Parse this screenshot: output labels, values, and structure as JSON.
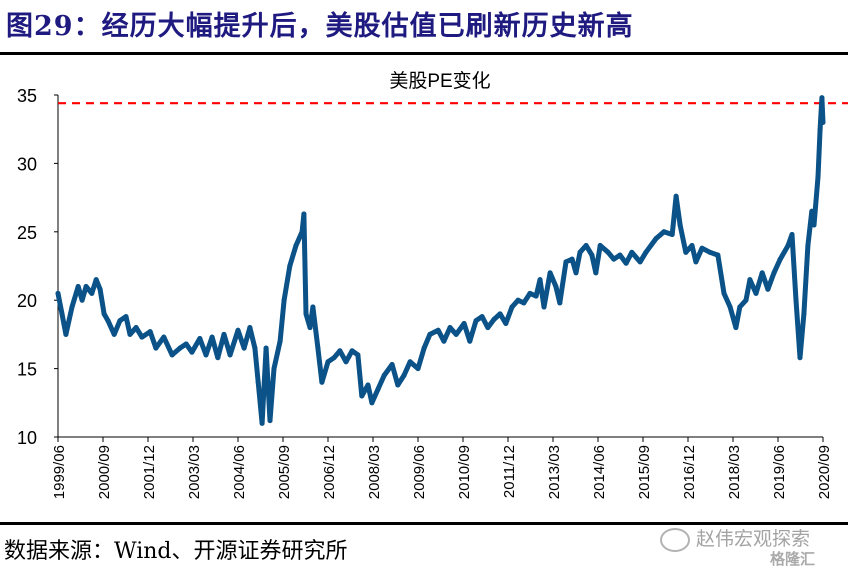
{
  "figure_title": "图29：经历大幅提升后，美股估值已刷新历史新高",
  "source": "数据来源：Wind、开源证券研究所",
  "watermark": {
    "account": "赵伟宏观探索",
    "platform": "格隆汇",
    "icon": "wechat-icon"
  },
  "colors": {
    "title": "#1f1a80",
    "line": "#0a5287",
    "reference": "#ff0000"
  },
  "chart_data": {
    "type": "line",
    "title": "美股PE变化",
    "xlabel": "",
    "ylabel": "",
    "ylim": [
      10,
      35
    ],
    "xlim": [
      1999.42,
      2020.67
    ],
    "yticks": [
      "10",
      "15",
      "20",
      "25",
      "30",
      "35"
    ],
    "xticks": [
      "1999/06",
      "2000/09",
      "2001/12",
      "2003/03",
      "2004/06",
      "2005/09",
      "2006/12",
      "2008/03",
      "2009/06",
      "2010/09",
      "2011/12",
      "2013/03",
      "2014/06",
      "2015/09",
      "2016/12",
      "2018/03",
      "2019/06",
      "2020/09"
    ],
    "grid": false,
    "reference_line": {
      "value": 34.4,
      "style": "dashed",
      "label": ""
    },
    "series": [
      {
        "name": "美股PE",
        "x": [
          1999.42,
          1999.53,
          1999.64,
          1999.81,
          1999.98,
          2000.09,
          2000.2,
          2000.36,
          2000.48,
          2000.59,
          2000.7,
          2000.81,
          2000.98,
          2001.14,
          2001.31,
          2001.42,
          2001.59,
          2001.75,
          2001.98,
          2002.14,
          2002.36,
          2002.59,
          2002.81,
          2002.98,
          2003.14,
          2003.36,
          2003.53,
          2003.7,
          2003.86,
          2004.03,
          2004.2,
          2004.42,
          2004.59,
          2004.75,
          2004.89,
          2004.98,
          2005.09,
          2005.2,
          2005.31,
          2005.42,
          2005.59,
          2005.7,
          2005.86,
          2006.03,
          2006.2,
          2006.25,
          2006.31,
          2006.42,
          2006.5,
          2006.64,
          2006.75,
          2006.92,
          2007.09,
          2007.25,
          2007.42,
          2007.59,
          2007.75,
          2007.86,
          2008.03,
          2008.14,
          2008.31,
          2008.48,
          2008.7,
          2008.86,
          2009.03,
          2009.2,
          2009.42,
          2009.59,
          2009.75,
          2009.98,
          2010.14,
          2010.31,
          2010.48,
          2010.7,
          2010.86,
          2011.03,
          2011.2,
          2011.36,
          2011.53,
          2011.7,
          2011.86,
          2012.03,
          2012.2,
          2012.36,
          2012.53,
          2012.7,
          2012.81,
          2012.92,
          2013.09,
          2013.25,
          2013.36,
          2013.53,
          2013.7,
          2013.81,
          2013.92,
          2014.09,
          2014.25,
          2014.36,
          2014.48,
          2014.7,
          2014.86,
          2015.03,
          2015.2,
          2015.36,
          2015.59,
          2015.75,
          2016.03,
          2016.25,
          2016.48,
          2016.59,
          2016.7,
          2016.86,
          2017.03,
          2017.14,
          2017.31,
          2017.53,
          2017.75,
          2017.92,
          2018.09,
          2018.25,
          2018.36,
          2018.53,
          2018.64,
          2018.81,
          2018.98,
          2019.14,
          2019.31,
          2019.48,
          2019.7,
          2019.81,
          2019.92,
          2020.03,
          2020.14,
          2020.25,
          2020.36,
          2020.42,
          2020.53,
          2020.59,
          2020.64,
          2020.67
        ],
        "values": [
          20.5,
          19,
          17.5,
          19.5,
          21,
          20,
          21,
          20.5,
          21.5,
          20.8,
          19,
          18.5,
          17.5,
          18.5,
          18.8,
          17.5,
          18,
          17.3,
          17.7,
          16.5,
          17.3,
          16,
          16.5,
          16.8,
          16.2,
          17.2,
          16,
          17.3,
          15.8,
          17.5,
          16,
          17.8,
          16.5,
          18,
          16.5,
          14,
          11,
          16.5,
          11.2,
          15,
          17,
          20,
          22.5,
          24,
          25,
          26.3,
          19,
          18,
          19.5,
          16.5,
          14,
          15.5,
          15.8,
          16.3,
          15.5,
          16.3,
          16,
          13,
          13.8,
          12.5,
          13.5,
          14.5,
          15.3,
          13.8,
          14.5,
          15.5,
          15,
          16.5,
          17.5,
          17.8,
          17,
          18,
          17.5,
          18.3,
          17,
          18.5,
          18.8,
          18,
          18.6,
          19,
          18.3,
          19.5,
          20,
          19.8,
          20.5,
          20.3,
          21.5,
          19.5,
          22,
          21,
          19.8,
          22.8,
          23,
          22,
          23.5,
          24,
          23.3,
          22,
          24,
          23.5,
          23,
          23.3,
          22.7,
          23.5,
          22.8,
          23.5,
          24.5,
          25,
          24.8,
          27.6,
          25.5,
          23.5,
          24,
          22.8,
          23.8,
          23.5,
          23.3,
          20.5,
          19.5,
          18,
          19.5,
          20,
          21.5,
          20.5,
          22,
          20.8,
          22,
          23,
          24,
          24.8,
          20,
          15.8,
          19,
          24,
          26.5,
          25.5,
          29,
          32.5,
          34.8,
          33
        ]
      }
    ]
  }
}
